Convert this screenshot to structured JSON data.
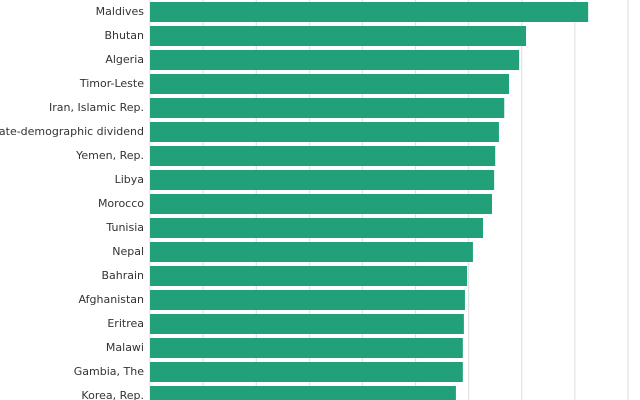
{
  "chart_data": {
    "type": "bar",
    "orientation": "horizontal",
    "categories": [
      "Maldives",
      "Bhutan",
      "Algeria",
      "Timor-Leste",
      "Iran, Islamic Rep.",
      "Late-demographic dividend",
      "Yemen, Rep.",
      "Libya",
      "Morocco",
      "Tunisia",
      "Nepal",
      "Bahrain",
      "Afghanistan",
      "Eritrea",
      "Malawi",
      "Gambia, The",
      "Korea, Rep."
    ],
    "values": [
      82.5,
      70.8,
      69.5,
      67.6,
      66.7,
      65.7,
      65.0,
      64.8,
      64.4,
      62.7,
      60.8,
      59.7,
      59.3,
      59.1,
      58.9,
      58.9,
      57.6
    ],
    "color": "#21a07a",
    "xlim": [
      0,
      90
    ],
    "xticks": [
      0,
      10,
      20,
      30,
      40,
      50,
      60,
      70,
      80,
      90
    ],
    "grid": true
  }
}
